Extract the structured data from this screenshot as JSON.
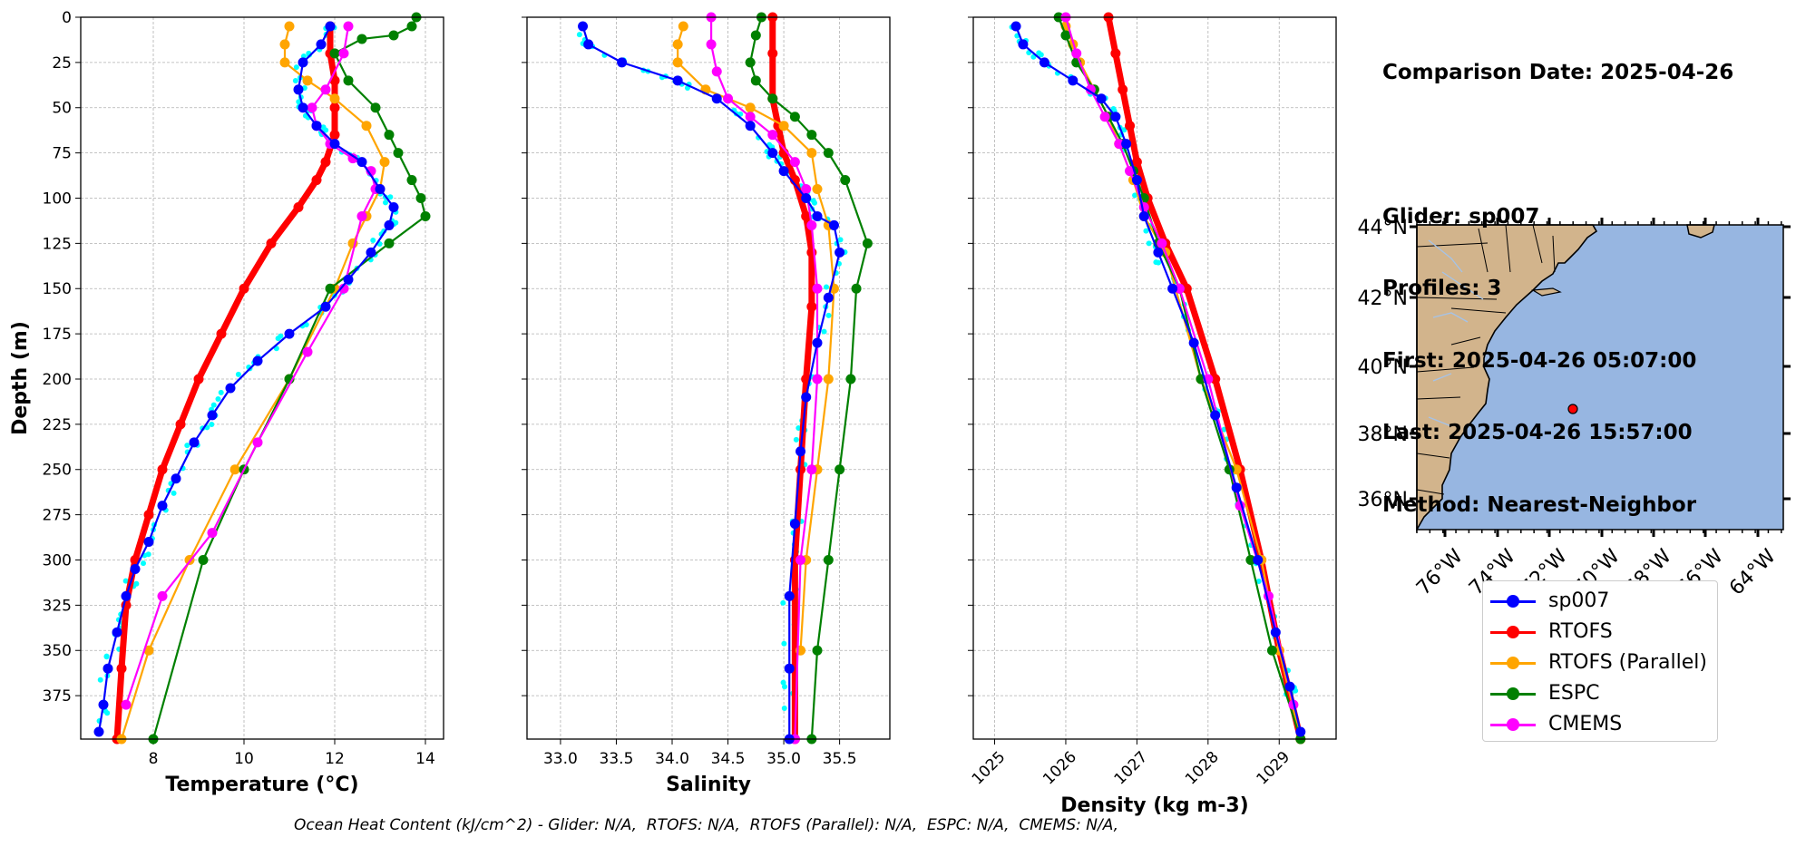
{
  "info": {
    "comparison": "Comparison Date: 2025-04-26",
    "glider": "Glider: sp007",
    "profiles": "Profiles: 3",
    "first": "First: 2025-04-26 05:07:00",
    "last": "Last: 2025-04-26 15:57:00",
    "method": "Method: Nearest-Neighbor"
  },
  "footer": "Ocean Heat Content (kJ/cm^2) - Glider: N/A,  RTOFS: N/A,  RTOFS (Parallel): N/A,  ESPC: N/A,  CMEMS: N/A,",
  "legend": [
    {
      "label": "sp007",
      "color": "#0000ff"
    },
    {
      "label": "RTOFS",
      "color": "#ff0000"
    },
    {
      "label": "RTOFS (Parallel)",
      "color": "#ffa500"
    },
    {
      "label": "ESPC",
      "color": "#008000"
    },
    {
      "label": "CMEMS",
      "color": "#ff00ff"
    }
  ],
  "chart_data": [
    {
      "type": "line",
      "xlabel": "Temperature (°C)",
      "ylabel": "Depth (m)",
      "xlim": [
        6.4,
        14.4
      ],
      "ylim": [
        399,
        0
      ],
      "xticks": [
        "8",
        "10",
        "12",
        "14"
      ],
      "yticks": [
        "0",
        "25",
        "50",
        "75",
        "100",
        "125",
        "150",
        "175",
        "200",
        "225",
        "250",
        "275",
        "300",
        "325",
        "350",
        "375"
      ],
      "grid": true,
      "series": [
        {
          "name": "sp007",
          "color": "#0000ff",
          "x": [
            11.9,
            11.7,
            11.3,
            11.2,
            11.3,
            11.6,
            12.0,
            12.6,
            13.0,
            13.3,
            13.2,
            12.8,
            12.3,
            11.8,
            11.0,
            10.3,
            9.7,
            9.3,
            8.9,
            8.5,
            8.2,
            7.9,
            7.6,
            7.4,
            7.2,
            7.0,
            6.9,
            6.8
          ],
          "y": [
            5,
            15,
            25,
            40,
            50,
            60,
            70,
            80,
            95,
            105,
            115,
            130,
            145,
            160,
            175,
            190,
            205,
            220,
            235,
            255,
            270,
            290,
            305,
            320,
            340,
            360,
            380,
            395
          ]
        },
        {
          "name": "RTOFS",
          "color": "#ff0000",
          "x": [
            11.9,
            11.9,
            12.0,
            12.0,
            12.0,
            11.8,
            11.6,
            11.2,
            10.6,
            10.0,
            9.5,
            9.0,
            8.6,
            8.2,
            7.9,
            7.6,
            7.4,
            7.3,
            7.2
          ],
          "y": [
            5,
            20,
            35,
            50,
            65,
            80,
            90,
            105,
            125,
            150,
            175,
            200,
            225,
            250,
            275,
            300,
            325,
            360,
            399
          ]
        },
        {
          "name": "RTOFS (Parallel)",
          "color": "#ffa500",
          "x": [
            11.0,
            10.9,
            10.9,
            11.4,
            12.0,
            12.7,
            13.1,
            13.0,
            12.7,
            12.4,
            12.0,
            11.0,
            9.8,
            8.8,
            7.9,
            7.3
          ],
          "y": [
            5,
            15,
            25,
            35,
            45,
            60,
            80,
            95,
            110,
            125,
            150,
            200,
            250,
            300,
            350,
            399
          ]
        },
        {
          "name": "ESPC",
          "color": "#008000",
          "x": [
            13.8,
            13.7,
            13.3,
            12.6,
            12.0,
            12.3,
            12.9,
            13.2,
            13.4,
            13.7,
            13.9,
            14.0,
            13.2,
            11.9,
            11.0,
            10.0,
            9.1,
            8.0
          ],
          "y": [
            0,
            5,
            10,
            12,
            20,
            35,
            50,
            65,
            75,
            90,
            100,
            110,
            125,
            150,
            200,
            250,
            300,
            399
          ]
        },
        {
          "name": "CMEMS",
          "color": "#ff00ff",
          "x": [
            12.3,
            12.2,
            11.8,
            11.5,
            11.6,
            11.9,
            12.4,
            12.8,
            12.9,
            12.6,
            12.2,
            11.4,
            10.3,
            9.3,
            8.2,
            7.4
          ],
          "y": [
            5,
            20,
            40,
            50,
            60,
            70,
            78,
            85,
            95,
            110,
            150,
            185,
            235,
            285,
            320,
            380
          ]
        }
      ]
    },
    {
      "type": "line",
      "xlabel": "Salinity",
      "xlim": [
        32.7,
        35.95
      ],
      "ylim": [
        399,
        0
      ],
      "xticks": [
        "33.0",
        "33.5",
        "34.0",
        "34.5",
        "35.0",
        "35.5"
      ],
      "grid": true,
      "series": [
        {
          "name": "sp007",
          "color": "#0000ff",
          "x": [
            33.2,
            33.25,
            33.55,
            34.05,
            34.4,
            34.7,
            34.9,
            35.0,
            35.2,
            35.3,
            35.45,
            35.5,
            35.4,
            35.3,
            35.2,
            35.15,
            35.1,
            35.05,
            35.05,
            35.05
          ],
          "y": [
            5,
            15,
            25,
            35,
            45,
            60,
            75,
            85,
            100,
            110,
            115,
            130,
            155,
            180,
            210,
            240,
            280,
            320,
            360,
            399
          ]
        },
        {
          "name": "RTOFS",
          "color": "#ff0000",
          "x": [
            34.9,
            34.9,
            34.9,
            34.95,
            35.0,
            35.1,
            35.2,
            35.25,
            35.25,
            35.2,
            35.15,
            35.1,
            35.1
          ],
          "y": [
            0,
            20,
            45,
            60,
            75,
            90,
            110,
            130,
            160,
            200,
            250,
            300,
            399
          ]
        },
        {
          "name": "RTOFS (Parallel)",
          "color": "#ffa500",
          "x": [
            34.1,
            34.05,
            34.05,
            34.3,
            34.7,
            35.0,
            35.25,
            35.3,
            35.4,
            35.45,
            35.4,
            35.3,
            35.2,
            35.15
          ],
          "y": [
            5,
            15,
            25,
            40,
            50,
            60,
            75,
            95,
            115,
            150,
            200,
            250,
            300,
            350
          ]
        },
        {
          "name": "ESPC",
          "color": "#008000",
          "x": [
            34.8,
            34.75,
            34.7,
            34.75,
            34.9,
            35.1,
            35.25,
            35.4,
            35.55,
            35.75,
            35.65,
            35.6,
            35.5,
            35.4,
            35.3,
            35.25
          ],
          "y": [
            0,
            10,
            25,
            35,
            45,
            55,
            65,
            75,
            90,
            125,
            150,
            200,
            250,
            300,
            350,
            399
          ]
        },
        {
          "name": "CMEMS",
          "color": "#ff00ff",
          "x": [
            34.35,
            34.35,
            34.4,
            34.5,
            34.7,
            34.9,
            35.1,
            35.2,
            35.25,
            35.3,
            35.3,
            35.25,
            35.15,
            35.1
          ],
          "y": [
            0,
            15,
            30,
            45,
            55,
            65,
            80,
            95,
            115,
            150,
            200,
            250,
            300,
            399
          ]
        }
      ]
    },
    {
      "type": "line",
      "xlabel": "Density (kg m-3)",
      "xlim": [
        1024.7,
        1029.8
      ],
      "ylim": [
        399,
        0
      ],
      "xticks": [
        "1025",
        "1026",
        "1027",
        "1028",
        "1029"
      ],
      "grid": true,
      "series": [
        {
          "name": "sp007",
          "color": "#0000ff",
          "x": [
            1025.3,
            1025.4,
            1025.7,
            1026.1,
            1026.5,
            1026.7,
            1026.85,
            1027.0,
            1027.1,
            1027.3,
            1027.5,
            1027.8,
            1028.1,
            1028.4,
            1028.7,
            1028.95,
            1029.15,
            1029.3
          ],
          "y": [
            5,
            15,
            25,
            35,
            45,
            55,
            70,
            90,
            110,
            130,
            150,
            180,
            220,
            260,
            300,
            340,
            370,
            395
          ]
        },
        {
          "name": "RTOFS",
          "color": "#ff0000",
          "x": [
            1026.6,
            1026.7,
            1026.8,
            1026.9,
            1027.0,
            1027.15,
            1027.4,
            1027.7,
            1028.1,
            1028.45,
            1028.75,
            1029.0,
            1029.3
          ],
          "y": [
            0,
            20,
            40,
            60,
            80,
            100,
            125,
            150,
            200,
            250,
            300,
            350,
            399
          ]
        },
        {
          "name": "RTOFS (Parallel)",
          "color": "#ffa500",
          "x": [
            1026.0,
            1026.1,
            1026.2,
            1026.4,
            1026.6,
            1026.75,
            1026.95,
            1027.1,
            1027.4,
            1027.9,
            1028.4,
            1028.75,
            1029.0,
            1029.3
          ],
          "y": [
            5,
            15,
            25,
            40,
            55,
            70,
            90,
            110,
            130,
            200,
            250,
            300,
            350,
            399
          ]
        },
        {
          "name": "ESPC",
          "color": "#008000",
          "x": [
            1025.9,
            1026.0,
            1026.15,
            1026.4,
            1026.6,
            1026.8,
            1026.95,
            1027.1,
            1027.3,
            1027.6,
            1027.9,
            1028.3,
            1028.6,
            1028.9,
            1029.3
          ],
          "y": [
            0,
            10,
            25,
            40,
            55,
            70,
            85,
            100,
            125,
            150,
            200,
            250,
            300,
            350,
            399
          ]
        },
        {
          "name": "CMEMS",
          "color": "#ff00ff",
          "x": [
            1026.0,
            1026.15,
            1026.35,
            1026.55,
            1026.75,
            1026.9,
            1027.1,
            1027.35,
            1027.6,
            1028.0,
            1028.45,
            1028.85,
            1029.2
          ],
          "y": [
            0,
            20,
            40,
            55,
            70,
            85,
            105,
            125,
            150,
            200,
            270,
            320,
            380
          ]
        }
      ]
    }
  ],
  "map": {
    "lat_labels": [
      "44°N",
      "42°N",
      "40°N",
      "38°N",
      "36°N"
    ],
    "lon_labels": [
      "76°W",
      "74°W",
      "72°W",
      "70°W",
      "68°W",
      "66°W",
      "64°W"
    ],
    "ocean_color": "#97b6e1",
    "land_color": "#d2b48c",
    "glider_position": {
      "lon": -71.3,
      "lat": 38.8
    }
  }
}
